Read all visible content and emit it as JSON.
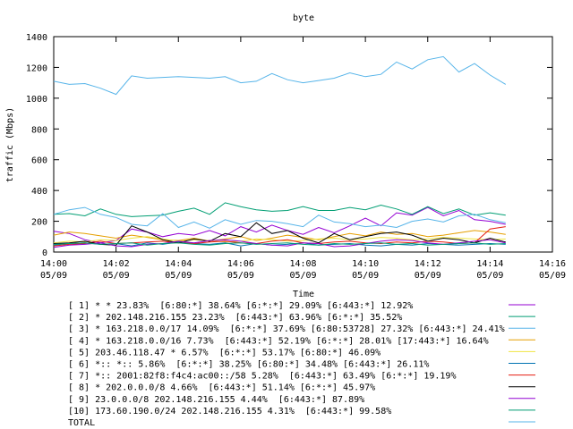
{
  "chart_data": {
    "type": "line",
    "title": "byte",
    "xlabel": "Time",
    "ylabel": "traffic (Mbps)",
    "ylim": [
      0,
      1400
    ],
    "y_ticks": [
      "0",
      "200",
      "400",
      "600",
      "800",
      "1000",
      "1200",
      "1400"
    ],
    "x_range_minutes": [
      0,
      16
    ],
    "x_ticks": [
      {
        "time": "14:00",
        "date": "05/09"
      },
      {
        "time": "14:02",
        "date": "05/09"
      },
      {
        "time": "14:04",
        "date": "05/09"
      },
      {
        "time": "14:06",
        "date": "05/09"
      },
      {
        "time": "14:08",
        "date": "05/09"
      },
      {
        "time": "14:10",
        "date": "05/09"
      },
      {
        "time": "14:12",
        "date": "05/09"
      },
      {
        "time": "14:14",
        "date": "05/09"
      },
      {
        "time": "14:16",
        "date": "05/09"
      }
    ],
    "grid": false,
    "legend_position": "bottom",
    "x_minutes": [
      0,
      0.5,
      1,
      1.5,
      2,
      2.5,
      3,
      3.5,
      4,
      4.5,
      5,
      5.5,
      6,
      6.5,
      7,
      7.5,
      8,
      8.5,
      9,
      9.5,
      10,
      10.5,
      11,
      11.5,
      12,
      12.5,
      13,
      13.5,
      14,
      14.5
    ],
    "series": [
      {
        "name": "[ 1] * * 23.83%  [6:80:*] 38.64% [6:*:*] 29.09% [6:443:*] 12.92%",
        "color": "#9400d3",
        "values": [
          135,
          120,
          80,
          60,
          75,
          150,
          130,
          100,
          120,
          110,
          140,
          105,
          165,
          130,
          175,
          140,
          115,
          160,
          125,
          170,
          220,
          170,
          255,
          240,
          290,
          235,
          270,
          210,
          200,
          180
        ]
      },
      {
        "name": "[ 2] * 202.148.216.155 23.23%  [6:443:*] 63.96% [6:*:*] 35.52%",
        "color": "#009e73",
        "values": [
          245,
          250,
          235,
          280,
          245,
          230,
          235,
          240,
          265,
          285,
          245,
          320,
          295,
          275,
          265,
          270,
          295,
          270,
          270,
          290,
          275,
          305,
          280,
          245,
          295,
          250,
          280,
          240,
          255,
          240
        ]
      },
      {
        "name": "[ 3] * 163.218.0.0/17 14.09%  [6:*:*] 37.69% [6:80:53728] 27.32% [6:443:*] 24.41%",
        "color": "#56b4e9",
        "values": [
          245,
          275,
          290,
          245,
          225,
          180,
          170,
          250,
          160,
          195,
          155,
          210,
          180,
          205,
          200,
          185,
          165,
          240,
          195,
          185,
          165,
          175,
          160,
          200,
          215,
          195,
          235,
          245,
          210,
          190
        ]
      },
      {
        "name": "[ 4] * 163.218.0.0/16 7.73%  [6:443:*] 52.19% [6:*:*] 28.01% [17:443:*] 16.64%",
        "color": "#e69f00",
        "values": [
          110,
          130,
          120,
          105,
          90,
          110,
          95,
          80,
          75,
          90,
          70,
          85,
          100,
          75,
          90,
          110,
          95,
          80,
          100,
          120,
          105,
          130,
          115,
          120,
          100,
          110,
          125,
          140,
          130,
          115
        ]
      },
      {
        "name": "[ 5] 203.46.118.47 * 6.57%  [6:*:*] 53.17% [6:80:*] 46.09%",
        "color": "#f0e442",
        "values": [
          60,
          70,
          65,
          80,
          75,
          90,
          100,
          85,
          70,
          80,
          75,
          65,
          70,
          85,
          80,
          70,
          75,
          85,
          90,
          80,
          85,
          95,
          90,
          80,
          85,
          95,
          90,
          85,
          80,
          85
        ]
      },
      {
        "name": "[ 6] *:: *:: 5.86%  [6:*:*] 38.25% [6:80:*] 34.48% [6:443:*] 26.11%",
        "color": "#0072b2",
        "values": [
          45,
          55,
          60,
          50,
          55,
          40,
          60,
          50,
          65,
          55,
          50,
          60,
          40,
          55,
          45,
          50,
          60,
          45,
          50,
          55,
          45,
          40,
          50,
          45,
          55,
          50,
          45,
          50,
          55,
          50
        ]
      },
      {
        "name": "[ 7] *:: 2001:82f8:f4c4:ac00::/58 5.28%  [6:443:*] 63.49% [6:*:*] 19.19%",
        "color": "#e51e10",
        "values": [
          40,
          50,
          55,
          70,
          55,
          60,
          65,
          70,
          60,
          55,
          65,
          70,
          60,
          55,
          70,
          80,
          60,
          55,
          65,
          70,
          60,
          55,
          65,
          60,
          70,
          65,
          55,
          60,
          150,
          165
        ]
      },
      {
        "name": "[ 8] * 202.0.0.0/8 4.66%  [6:443:*] 51.14% [6:*:*] 45.97%",
        "color": "#000000",
        "values": [
          55,
          60,
          70,
          50,
          45,
          170,
          130,
          80,
          60,
          85,
          70,
          120,
          100,
          190,
          120,
          140,
          90,
          60,
          120,
          80,
          100,
          120,
          130,
          110,
          70,
          90,
          80,
          60,
          90,
          65
        ]
      },
      {
        "name": "[ 9] 23.0.0.0/8 202.148.216.155 4.44%  [6:443:*] 87.89%",
        "color": "#9400d3",
        "values": [
          30,
          45,
          50,
          60,
          40,
          35,
          50,
          55,
          70,
          60,
          75,
          80,
          70,
          55,
          45,
          40,
          60,
          55,
          35,
          40,
          55,
          70,
          80,
          75,
          60,
          50,
          60,
          70,
          80,
          60
        ]
      },
      {
        "name": "[10] 173.60.190.0/24 202.148.216.155 4.31%  [6:443:*] 99.58%",
        "color": "#009e73",
        "values": [
          50,
          55,
          60,
          50,
          55,
          60,
          45,
          55,
          60,
          50,
          45,
          55,
          60,
          50,
          55,
          60,
          50,
          45,
          55,
          50,
          55,
          60,
          50,
          55,
          45,
          50,
          55,
          60,
          50,
          55
        ]
      },
      {
        "name": "TOTAL",
        "color": "#56b4e9",
        "values": [
          1110,
          1090,
          1095,
          1065,
          1025,
          1145,
          1130,
          1135,
          1140,
          1135,
          1130,
          1140,
          1100,
          1110,
          1160,
          1120,
          1100,
          1115,
          1130,
          1165,
          1140,
          1155,
          1235,
          1190,
          1250,
          1270,
          1170,
          1225,
          1150,
          1090
        ]
      }
    ]
  }
}
